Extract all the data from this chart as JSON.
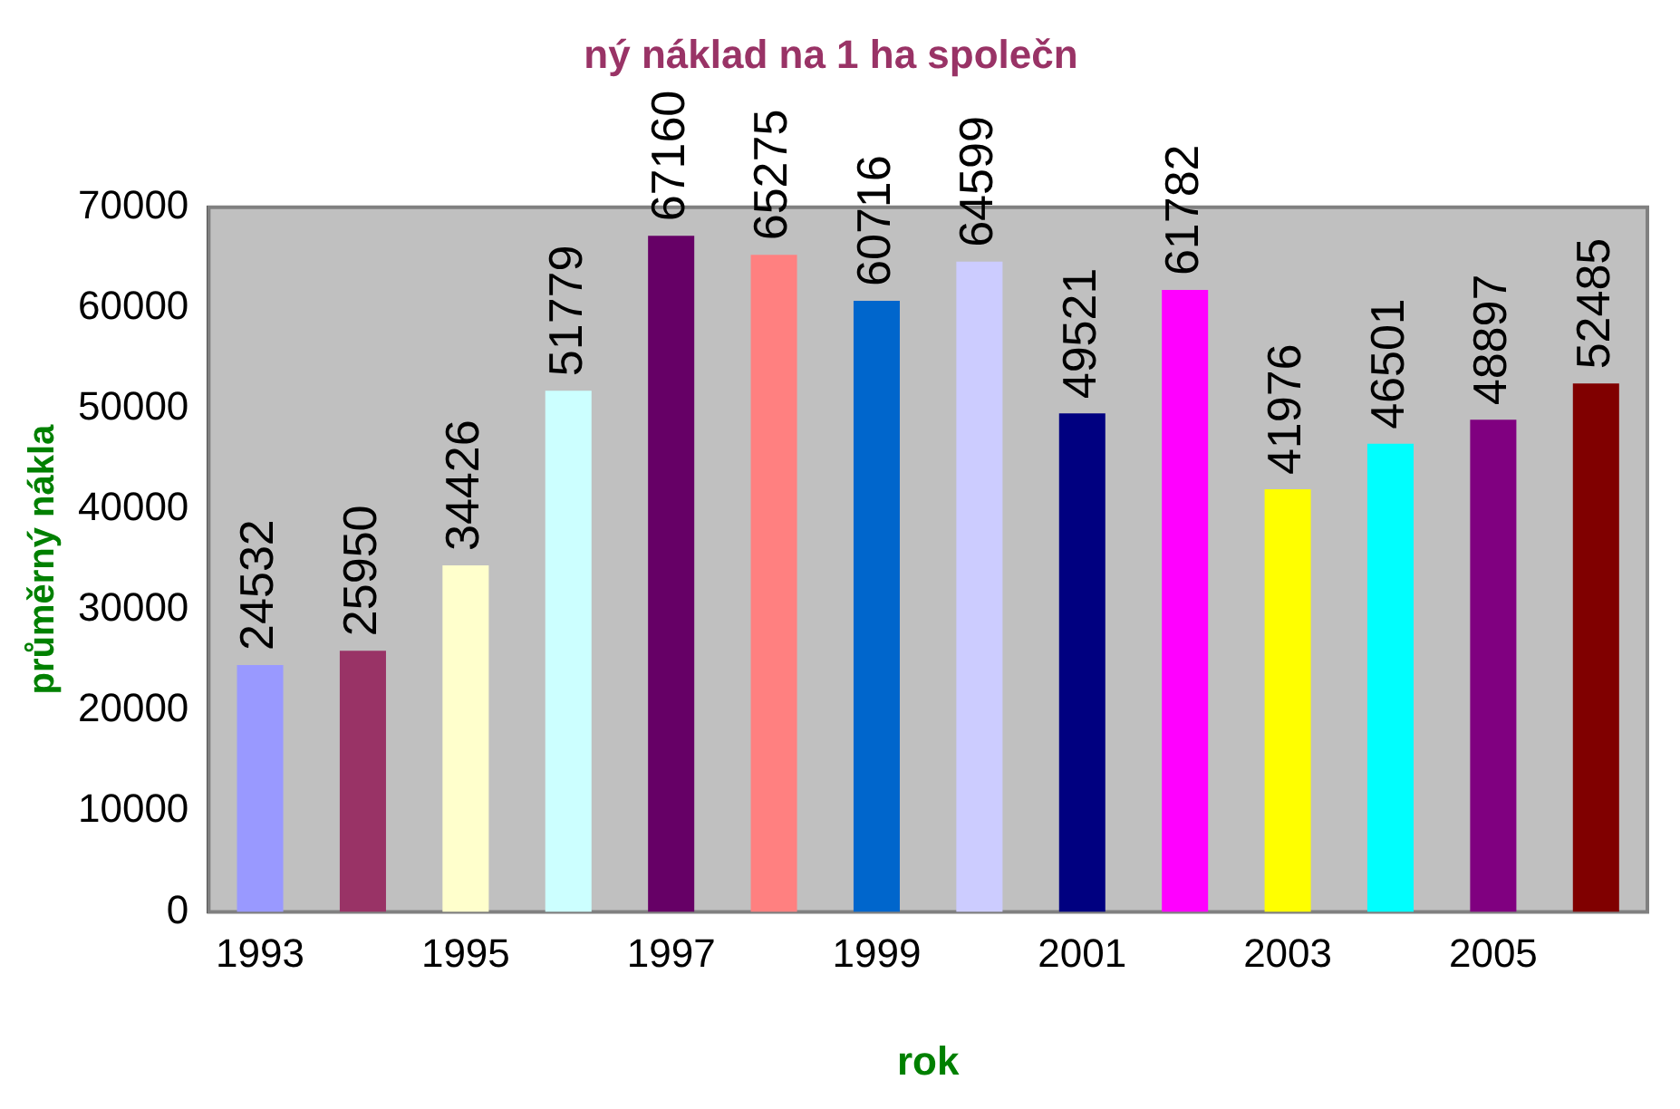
{
  "chart_data": {
    "type": "bar",
    "title": "ný náklad na 1 ha společn",
    "xlabel": "rok",
    "ylabel": "průměrný nákla",
    "categories": [
      "1993",
      null,
      "1995",
      null,
      "1997",
      null,
      "1999",
      null,
      "2001",
      null,
      "2003",
      null,
      "2005",
      null
    ],
    "values": [
      24532,
      25950,
      34426,
      51779,
      67160,
      65275,
      60716,
      64599,
      49521,
      61782,
      41976,
      46501,
      48897,
      52485
    ],
    "colors": [
      "#9999ff",
      "#993366",
      "#ffffcc",
      "#ccffff",
      "#660066",
      "#ff8080",
      "#0066cc",
      "#ccccff",
      "#000080",
      "#ff00ff",
      "#ffff00",
      "#00ffff",
      "#800080",
      "#800000"
    ],
    "ylim": [
      0,
      70000
    ],
    "yticks": [
      0,
      10000,
      20000,
      30000,
      40000,
      50000,
      60000,
      70000
    ],
    "grid": false,
    "data_labels": true
  }
}
